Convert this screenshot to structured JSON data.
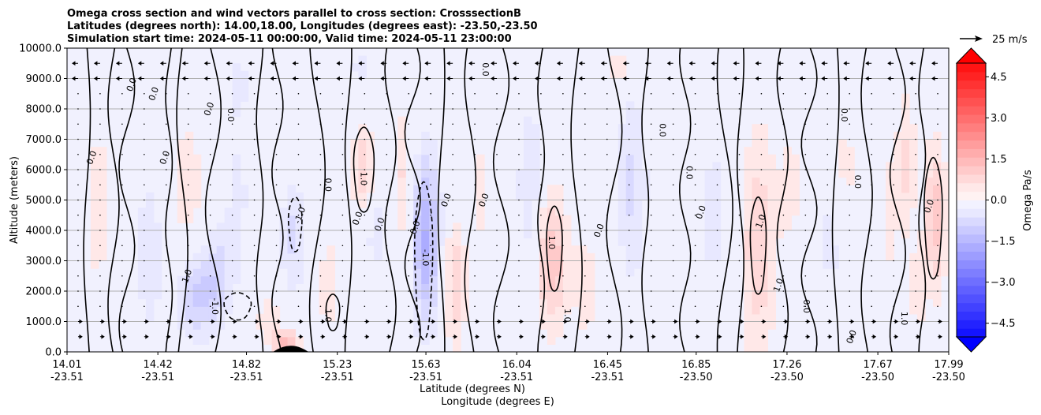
{
  "chart_data": {
    "type": "contour",
    "title_lines": [
      "Omega cross section and wind vectors parallel to cross section: CrosssectionB",
      "Latitudes (degrees north): 14.00,18.00, Longitudes (degrees east): -23.50,-23.50",
      "Simulation start time: 2024-05-11 00:00:00, Valid time: 2024-05-11 23:00:00"
    ],
    "ylabel": "Altitude (meters)",
    "xlabel_lines": [
      "Latitude (degrees N)",
      "Longitude (degrees E)"
    ],
    "ylim": [
      0,
      10000
    ],
    "yticks": [
      {
        "v": 0,
        "label": "0.0"
      },
      {
        "v": 1000,
        "label": "1000.0"
      },
      {
        "v": 2000,
        "label": "2000.0"
      },
      {
        "v": 3000,
        "label": "3000.0"
      },
      {
        "v": 4000,
        "label": "4000.0"
      },
      {
        "v": 5000,
        "label": "5000.0"
      },
      {
        "v": 6000,
        "label": "6000.0"
      },
      {
        "v": 7000,
        "label": "7000.0"
      },
      {
        "v": 8000,
        "label": "8000.0"
      },
      {
        "v": 9000,
        "label": "9000.0"
      },
      {
        "v": 10000,
        "label": "10000.0"
      }
    ],
    "xlim": [
      14.01,
      17.99
    ],
    "xticks": [
      {
        "lat": 14.01,
        "lat_label": "14.01",
        "lon_label": "-23.51"
      },
      {
        "lat": 14.42,
        "lat_label": "14.42",
        "lon_label": "-23.51"
      },
      {
        "lat": 14.82,
        "lat_label": "14.82",
        "lon_label": "-23.51"
      },
      {
        "lat": 15.23,
        "lat_label": "15.23",
        "lon_label": "-23.51"
      },
      {
        "lat": 15.63,
        "lat_label": "15.63",
        "lon_label": "-23.51"
      },
      {
        "lat": 16.04,
        "lat_label": "16.04",
        "lon_label": "-23.51"
      },
      {
        "lat": 16.45,
        "lat_label": "16.45",
        "lon_label": "-23.51"
      },
      {
        "lat": 16.85,
        "lat_label": "16.85",
        "lon_label": "-23.50"
      },
      {
        "lat": 17.26,
        "lat_label": "17.26",
        "lon_label": "-23.50"
      },
      {
        "lat": 17.67,
        "lat_label": "17.67",
        "lon_label": "-23.50"
      },
      {
        "lat": 17.99,
        "lat_label": "17.99",
        "lon_label": "-23.50"
      }
    ],
    "grid": "horizontal",
    "colorbar": {
      "label": "Omega Pa/s",
      "range": [
        -5,
        5
      ],
      "extend": "both",
      "ticks": [
        {
          "v": 4.5,
          "label": "4.5"
        },
        {
          "v": 3.0,
          "label": "3.0"
        },
        {
          "v": 1.5,
          "label": "1.5"
        },
        {
          "v": 0.0,
          "label": "0.0"
        },
        {
          "v": -1.5,
          "label": "−1.5"
        },
        {
          "v": -3.0,
          "label": "−3.0"
        },
        {
          "v": -4.5,
          "label": "−4.5"
        }
      ]
    },
    "quiver_key": {
      "label": "25 m/s",
      "speed": 25
    },
    "contour_labels": [
      "0.0",
      "1.0",
      "-1.0"
    ],
    "colors": {
      "positive": "#ff0000",
      "negative": "#0000ff",
      "neutral": "#ffffff",
      "grid": "#b0b0b0"
    }
  }
}
